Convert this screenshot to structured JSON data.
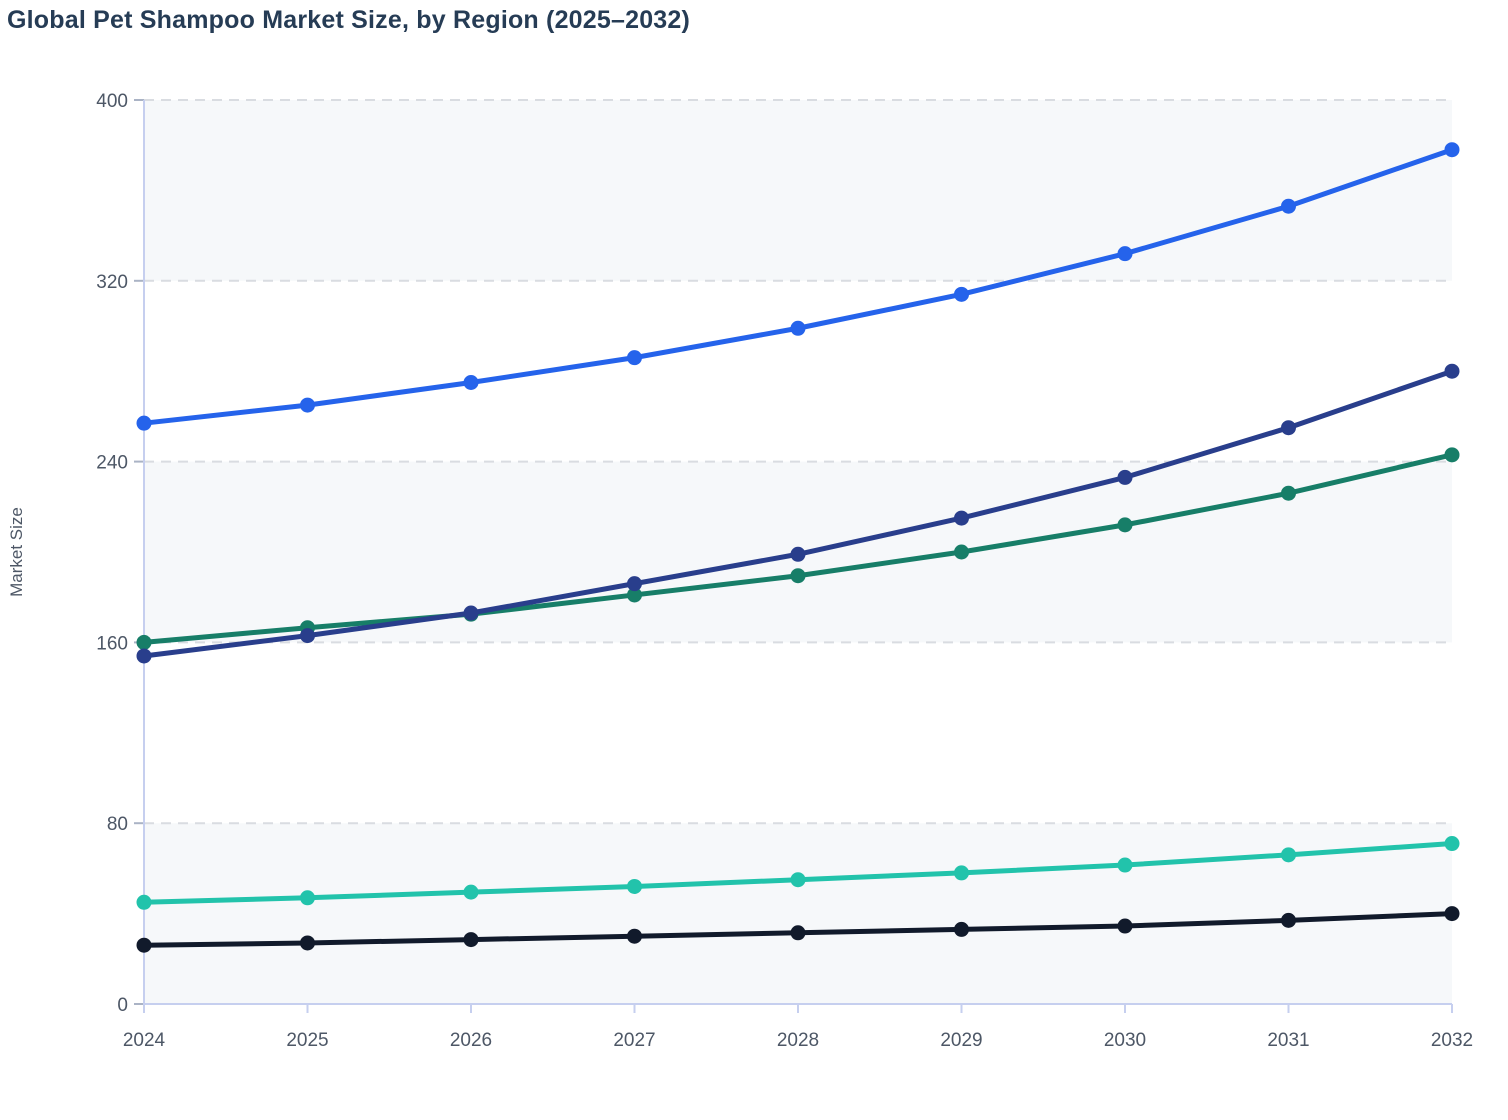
{
  "chart_data": {
    "type": "line",
    "title": "Global Pet Shampoo Market Size, by Region (2025–2032)",
    "xlabel": "",
    "ylabel": "Market Size",
    "x": [
      2024,
      2025,
      2026,
      2027,
      2028,
      2029,
      2030,
      2031,
      2032
    ],
    "series": [
      {
        "name": "series-blue",
        "color": "#2563eb",
        "values": [
          257,
          265,
          275,
          286,
          299,
          314,
          332,
          353,
          378
        ]
      },
      {
        "name": "series-navy",
        "color": "#293e8c",
        "values": [
          154,
          163,
          173,
          186,
          199,
          215,
          233,
          255,
          280
        ]
      },
      {
        "name": "series-teal-dark",
        "color": "#177e68",
        "values": [
          160,
          166.5,
          172.5,
          181,
          189.5,
          200,
          212,
          226,
          243
        ]
      },
      {
        "name": "series-turquoise",
        "color": "#22c3ab",
        "values": [
          45,
          47,
          49.5,
          52,
          55,
          58,
          61.5,
          66,
          71
        ]
      },
      {
        "name": "series-black",
        "color": "#111a2b",
        "values": [
          26,
          27,
          28.5,
          30,
          31.5,
          33,
          34.5,
          37,
          40
        ]
      }
    ],
    "ylim": [
      0,
      400
    ],
    "yticks": [
      0,
      80,
      160,
      240,
      320,
      400
    ],
    "grid": "horizontal-dashed",
    "legend": "none",
    "shaded_bands": [
      [
        0,
        80
      ],
      [
        160,
        240
      ],
      [
        320,
        400
      ]
    ]
  },
  "style": {
    "band_fill": "#f6f8fa",
    "grid_color": "#d9dce1",
    "axis_color": "#c6cfef",
    "tick_color": "#aab3c5",
    "label_color": "#4d5766",
    "title_color": "#263c55",
    "marker_radius": 7.5,
    "line_width": 5
  }
}
